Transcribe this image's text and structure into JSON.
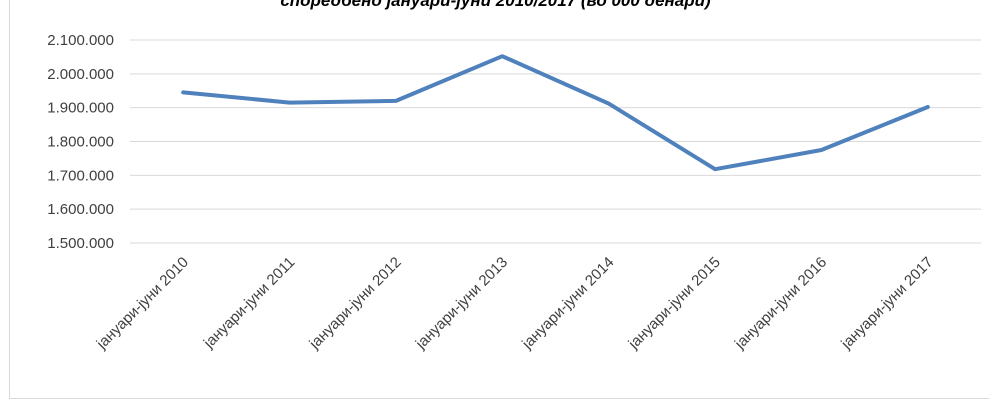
{
  "chart_data": {
    "type": "line",
    "title": "споредбено јануари-јуни 2010/2017 (во 000 денари)",
    "xlabel": "",
    "ylabel": "",
    "categories": [
      "јануари-јуни 2010",
      "јануари-јуни 2011",
      "јануари-јуни 2012",
      "јануари-јуни 2013",
      "јануари-јуни 2014",
      "јануари-јуни 2015",
      "јануари-јуни 2016",
      "јануари-јуни 2017"
    ],
    "series": [
      {
        "values": [
          1945000,
          1915000,
          1920000,
          2052000,
          1912000,
          1718000,
          1775000,
          1902000
        ],
        "color": "#4f81bd"
      }
    ],
    "ylim": [
      1500000,
      2100000
    ],
    "yticks": [
      1500000,
      1600000,
      1700000,
      1800000,
      1900000,
      2000000,
      2100000
    ],
    "ytick_labels": [
      "1.500.000",
      "1.600.000",
      "1.700.000",
      "1.800.000",
      "1.900.000",
      "2.000.000",
      "2.100.000"
    ],
    "grid": true,
    "legend": "none",
    "colors": {
      "line": "#4f81bd",
      "grid": "#d9d9d9",
      "tick_text": "#404040"
    }
  }
}
